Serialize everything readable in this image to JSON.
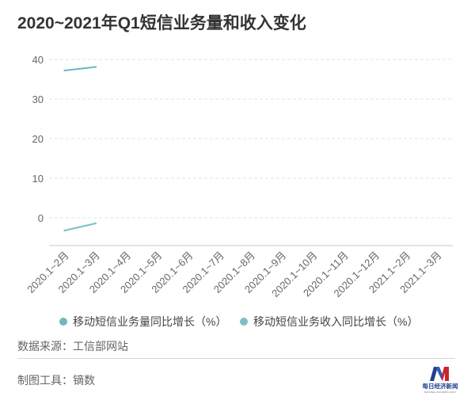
{
  "chart_data": {
    "type": "line",
    "title": "2020~2021年Q1短信业务量和收入变化",
    "categories": [
      "2020.1~2月",
      "2020.1~3月",
      "2020.1~4月",
      "2020.1~5月",
      "2020.1~6月",
      "2020.1~7月",
      "2020.1~8月",
      "2020.1~9月",
      "2020.1~10月",
      "2020.1~11月",
      "2020.1~12月",
      "2021.1~2月",
      "2021.1~3月"
    ],
    "series": [
      {
        "name": "移动短信业务量同比增长（%）",
        "values": [
          37.2,
          38.1,
          null,
          null,
          null,
          null,
          null,
          null,
          null,
          null,
          null,
          null,
          null
        ],
        "color": "#6fb7bf"
      },
      {
        "name": "移动短信业务收入同比增长（%）",
        "values": [
          -3.2,
          -1.4,
          null,
          null,
          null,
          null,
          null,
          null,
          null,
          null,
          null,
          null,
          null
        ],
        "color": "#7cc0c7"
      }
    ],
    "yticks": [
      0,
      10,
      20,
      30,
      40
    ],
    "ylim": [
      -7,
      43
    ],
    "grid": true,
    "legend": "bottom"
  },
  "source": "数据来源：工信部网站",
  "tool": "制图工具：镝数",
  "logo": {
    "name": "每日经济新闻",
    "tagline": "NATIONAL BUSINESS DAILY",
    "colors": {
      "blue": "#1f3f8f",
      "red": "#c9252c"
    }
  }
}
